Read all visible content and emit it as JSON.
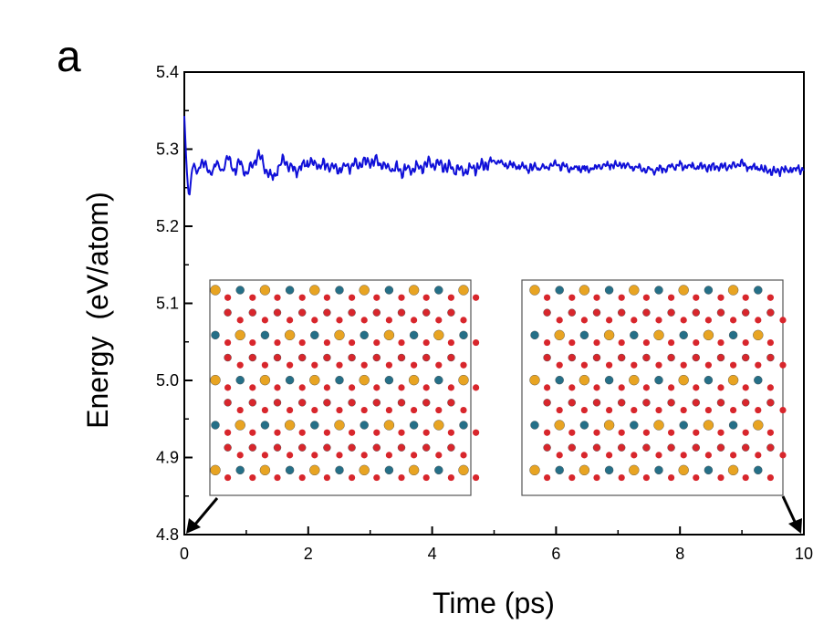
{
  "panel_label": "a",
  "chart_data": {
    "type": "line",
    "title": "",
    "xlabel": "Time (ps)",
    "ylabel": "Energy  (eV/atom)",
    "xlim": [
      0,
      10
    ],
    "ylim": [
      4.8,
      5.4
    ],
    "xticks": [
      0,
      2,
      4,
      6,
      8,
      10
    ],
    "xtick_labels": [
      "0",
      "2",
      "4",
      "6",
      "8",
      "10"
    ],
    "yticks": [
      4.8,
      4.9,
      5.0,
      5.1,
      5.2,
      5.3,
      5.4
    ],
    "ytick_labels": [
      "4.8",
      "4.9",
      "5.0",
      "5.1",
      "5.2",
      "5.3",
      "5.4"
    ],
    "series": [
      {
        "name": "Energy",
        "color": "#1010d8",
        "x": [
          0.0,
          0.02,
          0.05,
          0.08,
          0.12,
          0.16,
          0.2,
          0.3,
          0.4,
          0.5,
          0.6,
          0.7,
          0.8,
          0.9,
          1.0,
          1.2,
          1.4,
          1.6,
          1.8,
          2.0,
          2.5,
          3.0,
          3.5,
          4.0,
          4.5,
          5.0,
          5.5,
          6.0,
          6.5,
          7.0,
          7.5,
          8.0,
          8.5,
          9.0,
          9.5,
          10.0
        ],
        "y": [
          5.343,
          5.305,
          5.258,
          5.236,
          5.272,
          5.282,
          5.268,
          5.288,
          5.265,
          5.282,
          5.27,
          5.29,
          5.272,
          5.283,
          5.268,
          5.292,
          5.262,
          5.285,
          5.272,
          5.283,
          5.274,
          5.285,
          5.272,
          5.281,
          5.271,
          5.284,
          5.275,
          5.279,
          5.274,
          5.28,
          5.273,
          5.278,
          5.276,
          5.28,
          5.271,
          5.275
        ]
      }
    ],
    "annotations": [
      {
        "type": "inset",
        "description": "atomic structure snapshot at t = 0 ps",
        "points_to_x": 0
      },
      {
        "type": "inset",
        "description": "atomic structure snapshot at t = 10 ps",
        "points_to_x": 10
      }
    ]
  },
  "colors": {
    "axis": "#000000",
    "line": "#1010d8",
    "atom_yellow": "#e8a422",
    "atom_red": "#d8262c",
    "atom_teal": "#256f87",
    "bond": "#8a9aa0",
    "inset_border": "#555555"
  }
}
